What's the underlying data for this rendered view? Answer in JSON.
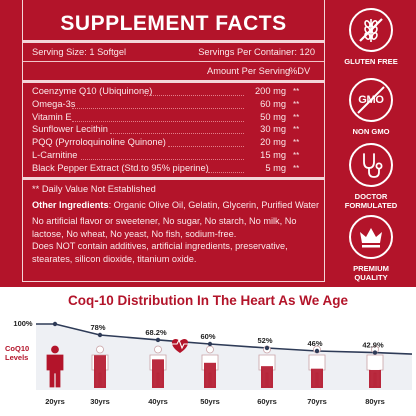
{
  "facts": {
    "title": "SUPPLEMENT FACTS",
    "serving_size": "Serving Size: 1 Softgel",
    "servings_per_container": "Servings Per Container: 120",
    "amount_header": "Amount Per Serving",
    "dv_header": "%DV",
    "rows": [
      {
        "name": "Coenzyme Q10 (Ubiquinone)",
        "amount": "200 mg",
        "dv": "**"
      },
      {
        "name": "Omega-3s",
        "amount": "60 mg",
        "dv": "**"
      },
      {
        "name": "Vitamin E",
        "amount": "50 mg",
        "dv": "**"
      },
      {
        "name": "Sunflower Lecithin",
        "amount": "30 mg",
        "dv": "**"
      },
      {
        "name": "PQQ (Pyrroloquinoline Quinone)",
        "amount": "20 mg",
        "dv": "**"
      },
      {
        "name": "L-Carnitine",
        "amount": "15 mg",
        "dv": "**"
      },
      {
        "name": "Black Pepper Extract (Std.to 95% piperine)",
        "amount": "5 mg",
        "dv": "**"
      }
    ],
    "daily_value_note": "** Daily Value Not Established",
    "other_label": "Other Ingredients",
    "other_text": ": Organic Olive Oil, Gelatin, Glycerin, Purified Water",
    "free_from": "No artificial flavor or sweetener, No sugar, No starch, No milk, No lactose, No wheat, No yeast, No fish, sodium-free.",
    "no_additives": "Does NOT contain additives, artificial ingredients, preservative, stearates, silicon dioxide, titanium oxide."
  },
  "badges": [
    {
      "icon": "wheat-crossed-icon",
      "label": "GLUTEN FREE"
    },
    {
      "icon": "non-gmo-icon",
      "icon_text": "GMO",
      "label": "NON GMO"
    },
    {
      "icon": "stethoscope-icon",
      "label": "DOCTOR FORMULATED"
    },
    {
      "icon": "crown-icon",
      "label": "PREMIUM QUALITY"
    }
  ],
  "chart": {
    "title": "Coq-10 Distribution In The Heart As We Age",
    "y_label": "CoQ10 Levels",
    "colors": {
      "accent": "#b3142a",
      "line": "#2e3b57",
      "outline": "#c9a2a6"
    }
  },
  "chart_data": {
    "type": "line",
    "title": "Coq-10 Distribution In The Heart As We Age",
    "ylabel": "CoQ10 Levels",
    "x": [
      "20yrs",
      "30yrs",
      "40yrs",
      "50yrs",
      "60yrs",
      "70yrs",
      "80yrs"
    ],
    "series": [
      {
        "values": [
          100,
          78,
          68.2,
          60,
          52,
          46,
          42.9
        ],
        "labels": [
          "100%",
          "78%",
          "68.2%",
          "60%",
          "52%",
          "46%",
          "42.9%"
        ]
      }
    ]
  }
}
